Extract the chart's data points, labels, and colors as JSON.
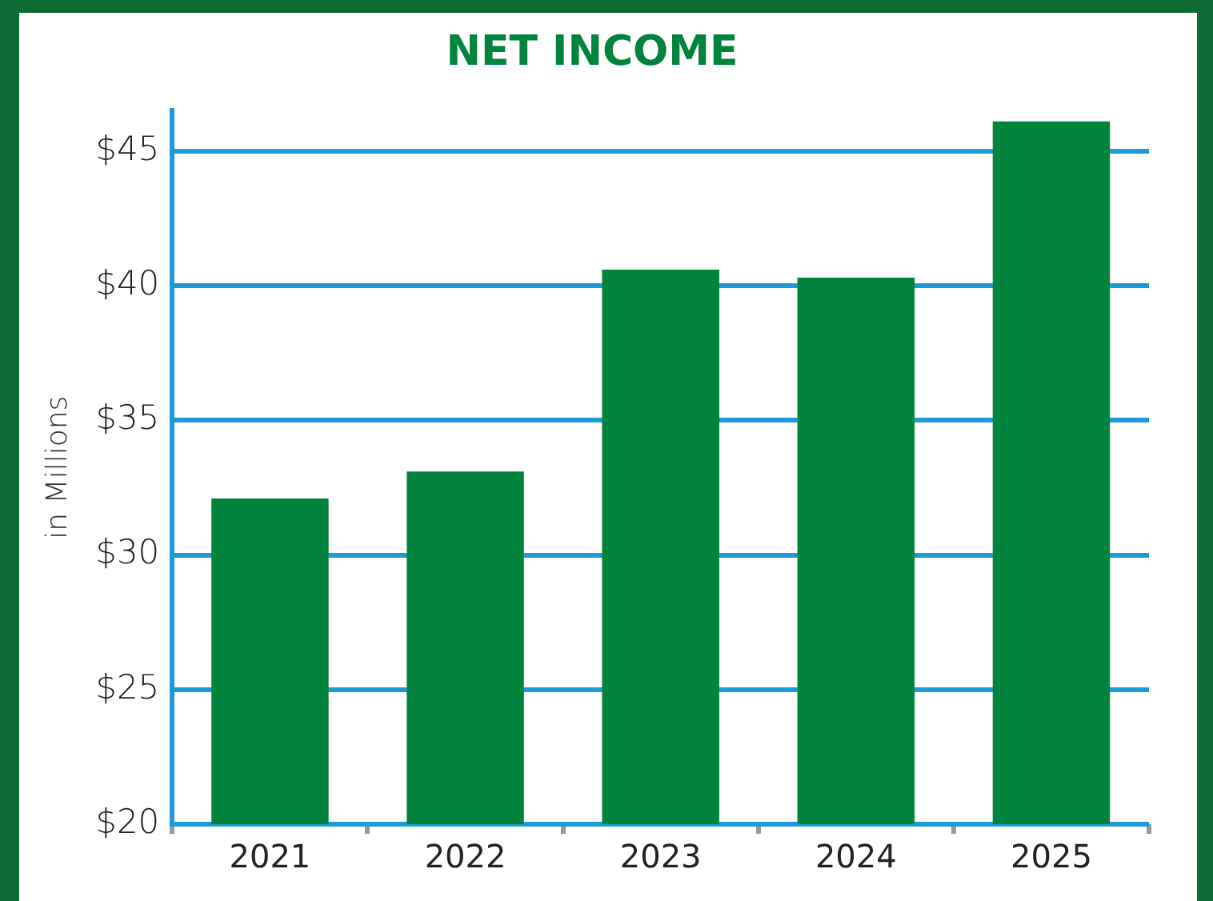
{
  "chart_data": {
    "type": "bar",
    "title": "NET INCOME",
    "ylabel": "in Millions",
    "categories": [
      "2021",
      "2022",
      "2023",
      "2024",
      "2025"
    ],
    "values": [
      32.1,
      33.1,
      40.6,
      40.3,
      46.1
    ],
    "color": "#00843d",
    "ylim": [
      20,
      46.5
    ],
    "yticks": [
      {
        "value": 20,
        "label": "$20"
      },
      {
        "value": 25,
        "label": "$25"
      },
      {
        "value": 30,
        "label": "$30"
      },
      {
        "value": 35,
        "label": "$35"
      },
      {
        "value": 40,
        "label": "$40"
      },
      {
        "value": 45,
        "label": "$45"
      }
    ],
    "grid": "y",
    "legend": false
  }
}
